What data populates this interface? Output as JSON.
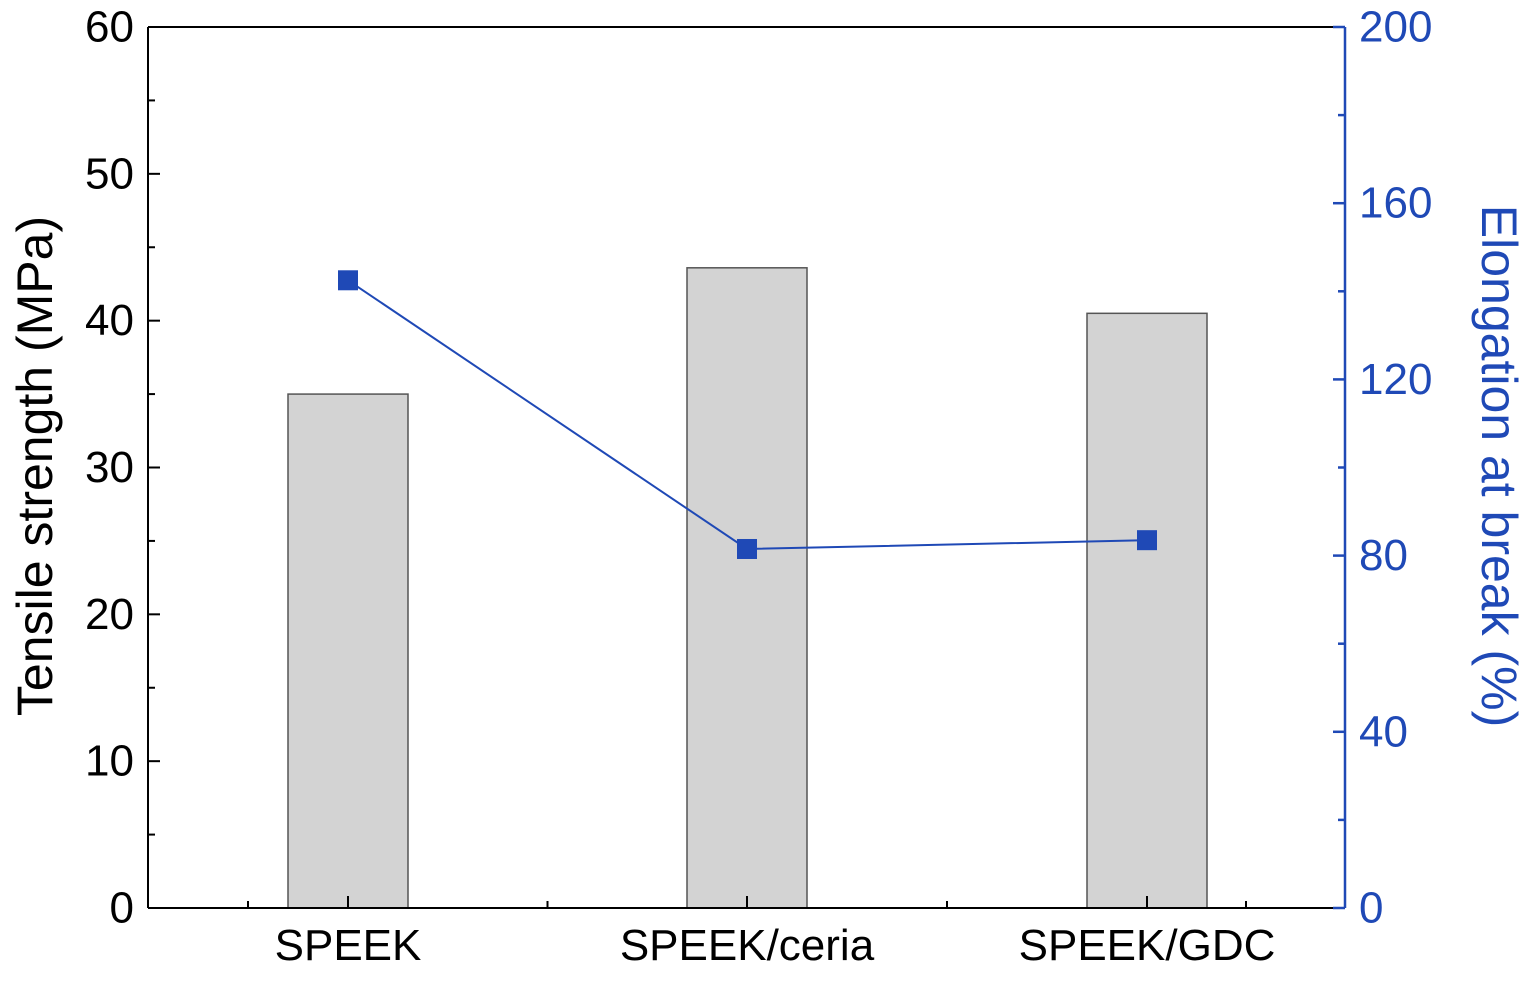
{
  "chart_data": {
    "type": "bar",
    "categories": [
      "SPEEK",
      "SPEEK/ceria",
      "SPEEK/GDC"
    ],
    "series": [
      {
        "values": [
          35.0,
          43.6,
          40.5
        ],
        "axis": "left",
        "render": "bar",
        "color": "#d3d3d3"
      },
      {
        "values": [
          142.5,
          81.5,
          83.5
        ],
        "axis": "right",
        "render": "line",
        "marker": "square",
        "color": "#1f49b6"
      }
    ],
    "ylabel": "Tensile strength (MPa)",
    "y2label": "Elongation at break (%)",
    "ylim": [
      0,
      60
    ],
    "y2lim": [
      0,
      200
    ],
    "yticks": [
      "0",
      "10",
      "20",
      "30",
      "40",
      "50",
      "60"
    ],
    "y2ticks": [
      "0",
      "40",
      "80",
      "120",
      "160",
      "200"
    ],
    "grid": false,
    "legend": "none"
  },
  "colors": {
    "left_axis": "#000000",
    "right_axis": "#1f49b6",
    "bar_fill": "#d3d3d3",
    "bar_stroke": "#555555"
  }
}
